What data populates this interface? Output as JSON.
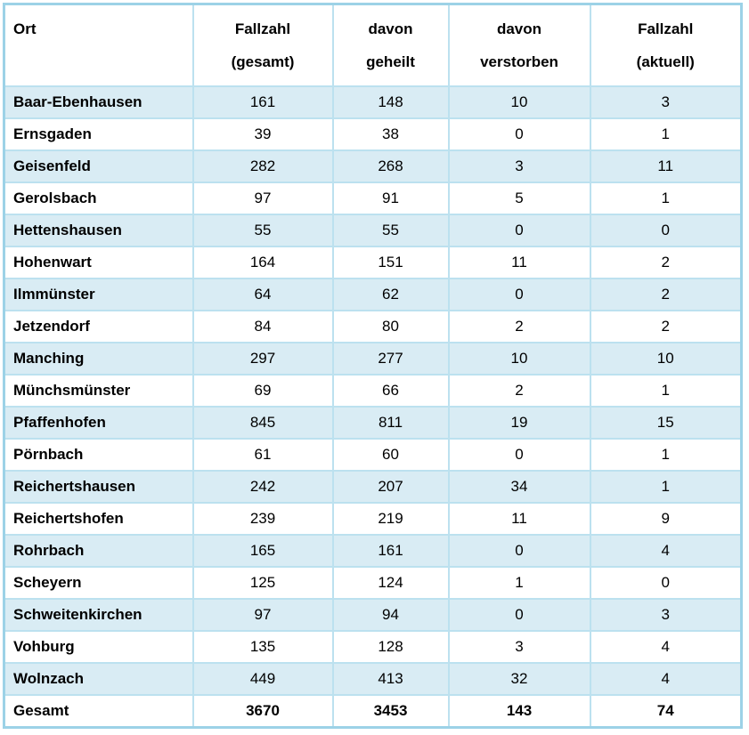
{
  "colors": {
    "row_stripe": "#d9ecf4",
    "row_plain": "#ffffff",
    "grid_border": "#bce1ef",
    "outer_border": "#9cd2e7",
    "text": "#000000"
  },
  "table": {
    "header": {
      "col_ort": {
        "line1": "",
        "line2": "Ort"
      },
      "col_gesamt": {
        "line1": "Fallzahl",
        "line2": "(gesamt)"
      },
      "col_geheilt": {
        "line1": "davon",
        "line2": "geheilt"
      },
      "col_verstorben": {
        "line1": "davon",
        "line2": "verstorben"
      },
      "col_aktuell": {
        "line1": "Fallzahl",
        "line2": "(aktuell)"
      }
    },
    "rows": [
      {
        "ort": "Baar-Ebenhausen",
        "fallzahl_gesamt": "161",
        "davon_geheilt": "148",
        "davon_verstorben": "10",
        "fallzahl_aktuell": "3"
      },
      {
        "ort": "Ernsgaden",
        "fallzahl_gesamt": "39",
        "davon_geheilt": "38",
        "davon_verstorben": "0",
        "fallzahl_aktuell": "1"
      },
      {
        "ort": "Geisenfeld",
        "fallzahl_gesamt": "282",
        "davon_geheilt": "268",
        "davon_verstorben": "3",
        "fallzahl_aktuell": "11"
      },
      {
        "ort": "Gerolsbach",
        "fallzahl_gesamt": "97",
        "davon_geheilt": "91",
        "davon_verstorben": "5",
        "fallzahl_aktuell": "1"
      },
      {
        "ort": "Hettenshausen",
        "fallzahl_gesamt": "55",
        "davon_geheilt": "55",
        "davon_verstorben": "0",
        "fallzahl_aktuell": "0"
      },
      {
        "ort": "Hohenwart",
        "fallzahl_gesamt": "164",
        "davon_geheilt": "151",
        "davon_verstorben": "11",
        "fallzahl_aktuell": "2"
      },
      {
        "ort": "Ilmmünster",
        "fallzahl_gesamt": "64",
        "davon_geheilt": "62",
        "davon_verstorben": "0",
        "fallzahl_aktuell": "2"
      },
      {
        "ort": "Jetzendorf",
        "fallzahl_gesamt": "84",
        "davon_geheilt": "80",
        "davon_verstorben": "2",
        "fallzahl_aktuell": "2"
      },
      {
        "ort": "Manching",
        "fallzahl_gesamt": "297",
        "davon_geheilt": "277",
        "davon_verstorben": "10",
        "fallzahl_aktuell": "10"
      },
      {
        "ort": "Münchsmünster",
        "fallzahl_gesamt": "69",
        "davon_geheilt": "66",
        "davon_verstorben": "2",
        "fallzahl_aktuell": "1"
      },
      {
        "ort": "Pfaffenhofen",
        "fallzahl_gesamt": "845",
        "davon_geheilt": "811",
        "davon_verstorben": "19",
        "fallzahl_aktuell": "15"
      },
      {
        "ort": "Pörnbach",
        "fallzahl_gesamt": "61",
        "davon_geheilt": "60",
        "davon_verstorben": "0",
        "fallzahl_aktuell": "1"
      },
      {
        "ort": "Reichertshausen",
        "fallzahl_gesamt": "242",
        "davon_geheilt": "207",
        "davon_verstorben": "34",
        "fallzahl_aktuell": "1"
      },
      {
        "ort": "Reichertshofen",
        "fallzahl_gesamt": "239",
        "davon_geheilt": "219",
        "davon_verstorben": "11",
        "fallzahl_aktuell": "9"
      },
      {
        "ort": "Rohrbach",
        "fallzahl_gesamt": "165",
        "davon_geheilt": "161",
        "davon_verstorben": "0",
        "fallzahl_aktuell": "4"
      },
      {
        "ort": "Scheyern",
        "fallzahl_gesamt": "125",
        "davon_geheilt": "124",
        "davon_verstorben": "1",
        "fallzahl_aktuell": "0"
      },
      {
        "ort": "Schweitenkirchen",
        "fallzahl_gesamt": "97",
        "davon_geheilt": "94",
        "davon_verstorben": "0",
        "fallzahl_aktuell": "3"
      },
      {
        "ort": "Vohburg",
        "fallzahl_gesamt": "135",
        "davon_geheilt": "128",
        "davon_verstorben": "3",
        "fallzahl_aktuell": "4"
      },
      {
        "ort": "Wolnzach",
        "fallzahl_gesamt": "449",
        "davon_geheilt": "413",
        "davon_verstorben": "32",
        "fallzahl_aktuell": "4"
      },
      {
        "ort": "Gesamt",
        "fallzahl_gesamt": "3670",
        "davon_geheilt": "3453",
        "davon_verstorben": "143",
        "fallzahl_aktuell": "74",
        "is_total": true
      }
    ]
  }
}
